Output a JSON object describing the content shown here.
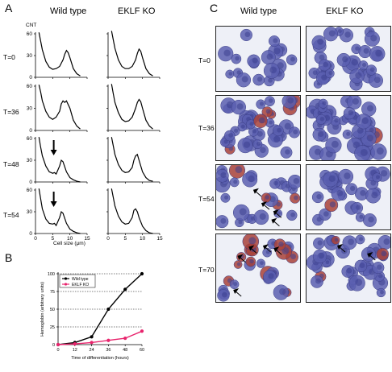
{
  "panels": {
    "a": {
      "letter": "A",
      "col_headers": [
        "Wild type",
        "EKLF KO"
      ],
      "y_unit": "CNT",
      "rows": [
        {
          "label": "T=0",
          "y_ticks": [
            "0",
            "30",
            "60"
          ]
        },
        {
          "label": "T=36",
          "y_ticks": [
            "0",
            "30",
            "60"
          ]
        },
        {
          "label": "T=48",
          "y_ticks": [
            "0",
            "30",
            "60"
          ]
        },
        {
          "label": "T=54",
          "y_ticks": [
            "0",
            "30",
            "60"
          ]
        }
      ],
      "x_ticks": [
        "0",
        "5",
        "10",
        "15"
      ],
      "x_label": "Cell size (μm)"
    },
    "b": {
      "letter": "B",
      "y_label": "Hemoglobin (arbitrary units)",
      "x_label": "Time of differentiation (hours)",
      "y_ticks": [
        "0",
        "25",
        "50",
        "75",
        "100"
      ],
      "x_ticks": [
        "0",
        "12",
        "24",
        "36",
        "48",
        "60"
      ],
      "legend": [
        "Wild type",
        "EKLF KO"
      ]
    },
    "c": {
      "letter": "C",
      "col_headers": [
        "Wild type",
        "EKLF KO"
      ],
      "rows": [
        "T=0",
        "T=36",
        "T=54",
        "T=70"
      ]
    }
  },
  "colors": {
    "wild_type": "#000000",
    "eklf_ko": "#e8246d",
    "cell_blue": "#5b5fb0",
    "cell_red": "#a8423a",
    "bg": "#eef0f7"
  },
  "chart_data": [
    {
      "type": "line",
      "title": "",
      "xlabel": "Time of differentiation (hours)",
      "ylabel": "Hemoglobin (arbitrary units)",
      "xlim": [
        0,
        60
      ],
      "ylim": [
        0,
        100
      ],
      "x": [
        0,
        12,
        24,
        36,
        48,
        60
      ],
      "series": [
        {
          "name": "Wild type",
          "values": [
            0,
            3,
            11,
            50,
            78,
            100
          ]
        },
        {
          "name": "EKLF KO",
          "values": [
            0,
            1,
            3,
            6,
            9,
            19
          ]
        }
      ],
      "grid": "dotted horizontal at 25, 50, 75, 100",
      "legend_placement": "top-left"
    },
    {
      "type": "line",
      "title": "",
      "xlabel": "Cell size (μm)",
      "ylabel": "CNT",
      "xlim": [
        0,
        15
      ],
      "ylim": [
        0,
        60
      ],
      "grid": "off",
      "panels": [
        {
          "row": "T=0",
          "genotype": "Wild type",
          "x": [
            1,
            1.5,
            2,
            3,
            4,
            5,
            6,
            7,
            8,
            8.5,
            9,
            9.5,
            10,
            11,
            12,
            13
          ],
          "values": [
            62,
            50,
            38,
            22,
            14,
            11,
            12,
            15,
            24,
            32,
            37,
            34,
            27,
            12,
            5,
            2
          ]
        },
        {
          "row": "T=0",
          "genotype": "EKLF KO",
          "x": [
            1,
            1.5,
            2,
            3,
            4,
            5,
            6,
            7,
            8,
            8.5,
            9,
            9.5,
            10,
            11,
            12,
            13
          ],
          "values": [
            64,
            52,
            40,
            24,
            15,
            12,
            12,
            15,
            24,
            33,
            39,
            36,
            27,
            12,
            5,
            2
          ]
        },
        {
          "row": "T=36",
          "genotype": "Wild type",
          "x": [
            1,
            1.5,
            2,
            3,
            4,
            5,
            6,
            7,
            7.5,
            8,
            8.5,
            9,
            10,
            11,
            12,
            13
          ],
          "values": [
            62,
            52,
            40,
            26,
            18,
            15,
            18,
            26,
            36,
            40,
            38,
            40,
            30,
            14,
            6,
            2
          ]
        },
        {
          "row": "T=36",
          "genotype": "EKLF KO",
          "x": [
            1,
            1.5,
            2,
            3,
            4,
            5,
            6,
            7,
            8,
            8.5,
            9,
            9.5,
            10,
            11,
            12,
            13
          ],
          "values": [
            63,
            50,
            38,
            24,
            15,
            12,
            13,
            18,
            30,
            38,
            42,
            39,
            30,
            14,
            6,
            2
          ]
        },
        {
          "row": "T=48",
          "genotype": "Wild type",
          "x": [
            1,
            1.5,
            2,
            3,
            4,
            5,
            5.5,
            6,
            7,
            7.5,
            8,
            9,
            10,
            11,
            12,
            13
          ],
          "values": [
            62,
            48,
            36,
            22,
            14,
            12,
            13,
            11,
            22,
            30,
            28,
            14,
            6,
            3,
            1,
            0
          ]
        },
        {
          "row": "T=48",
          "genotype": "EKLF KO",
          "x": [
            1,
            1.5,
            2,
            3,
            4,
            5,
            6,
            7,
            7.5,
            8,
            8.5,
            9,
            10,
            11,
            12,
            13
          ],
          "values": [
            62,
            50,
            38,
            24,
            16,
            13,
            14,
            20,
            30,
            36,
            38,
            30,
            14,
            6,
            2,
            1
          ]
        },
        {
          "row": "T=54",
          "genotype": "Wild type",
          "x": [
            1,
            1.5,
            2,
            3,
            4,
            5,
            5.5,
            6,
            7,
            7.5,
            8,
            9,
            10,
            11,
            12,
            13
          ],
          "values": [
            62,
            48,
            34,
            20,
            14,
            13,
            14,
            11,
            22,
            30,
            28,
            14,
            6,
            3,
            1,
            0
          ]
        },
        {
          "row": "T=54",
          "genotype": "EKLF KO",
          "x": [
            1,
            1.5,
            2,
            3,
            4,
            5,
            6,
            7,
            7.5,
            8,
            8.5,
            9,
            10,
            11,
            12,
            13
          ],
          "values": [
            62,
            50,
            38,
            24,
            16,
            13,
            14,
            22,
            32,
            34,
            30,
            22,
            10,
            4,
            1,
            0
          ]
        }
      ]
    }
  ]
}
